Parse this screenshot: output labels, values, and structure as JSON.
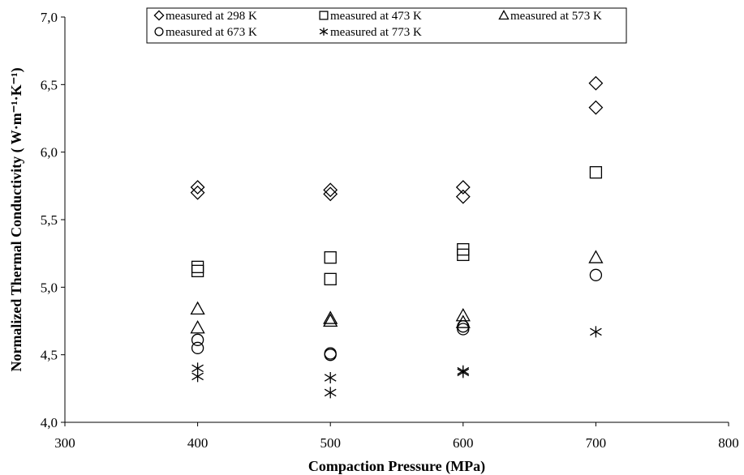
{
  "chart_data": {
    "type": "scatter",
    "title": "",
    "xlabel": "Compaction Pressure (MPa)",
    "ylabel": "Normalized Thermal Conductivity ( W·m⁻¹·K⁻¹)",
    "xlim": [
      300,
      800
    ],
    "ylim": [
      4.0,
      7.0
    ],
    "x_ticks": [
      "300",
      "400",
      "500",
      "600",
      "700",
      "800"
    ],
    "y_ticks": [
      "4,0",
      "4,5",
      "5,0",
      "5,5",
      "6,0",
      "6,5",
      "7,0"
    ],
    "grid": false,
    "legend_position": "top",
    "series": [
      {
        "name": "measured at 298 K",
        "marker": "diamond",
        "points": [
          [
            400,
            5.74
          ],
          [
            400,
            5.7
          ],
          [
            500,
            5.72
          ],
          [
            500,
            5.69
          ],
          [
            600,
            5.74
          ],
          [
            600,
            5.67
          ],
          [
            700,
            6.51
          ],
          [
            700,
            6.33
          ]
        ]
      },
      {
        "name": "measured at 473 K",
        "marker": "square",
        "points": [
          [
            400,
            5.15
          ],
          [
            400,
            5.12
          ],
          [
            500,
            5.22
          ],
          [
            500,
            5.06
          ],
          [
            600,
            5.28
          ],
          [
            600,
            5.24
          ],
          [
            700,
            5.85
          ]
        ]
      },
      {
        "name": "measured at 573 K",
        "marker": "triangle",
        "points": [
          [
            400,
            4.84
          ],
          [
            400,
            4.7
          ],
          [
            500,
            4.77
          ],
          [
            500,
            4.75
          ],
          [
            600,
            4.79
          ],
          [
            600,
            4.74
          ],
          [
            700,
            5.22
          ]
        ]
      },
      {
        "name": "measured at 673 K",
        "marker": "circle",
        "points": [
          [
            400,
            4.61
          ],
          [
            400,
            4.55
          ],
          [
            500,
            4.51
          ],
          [
            500,
            4.5
          ],
          [
            600,
            4.71
          ],
          [
            600,
            4.69
          ],
          [
            700,
            5.09
          ]
        ]
      },
      {
        "name": "measured at 773 K",
        "marker": "asterisk",
        "points": [
          [
            400,
            4.4
          ],
          [
            400,
            4.34
          ],
          [
            500,
            4.33
          ],
          [
            500,
            4.22
          ],
          [
            600,
            4.38
          ],
          [
            600,
            4.37
          ],
          [
            700,
            4.67
          ]
        ]
      }
    ]
  }
}
